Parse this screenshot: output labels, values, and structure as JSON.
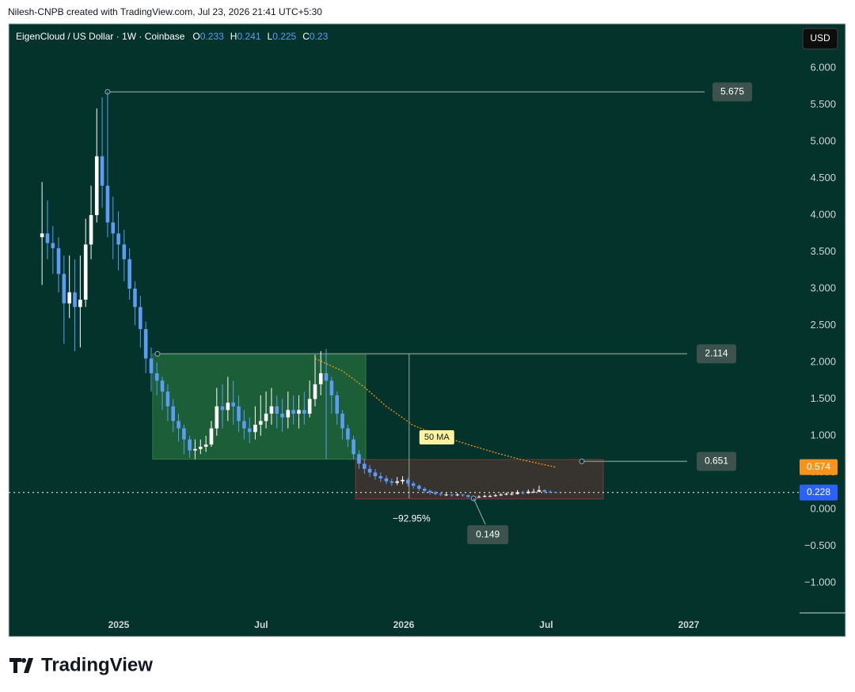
{
  "header": {
    "attribution": "Nilesh-CNPB created with TradingView.com, Jul 23, 2026 21:41 UTC+5:30"
  },
  "footer": {
    "brand": "TradingView"
  },
  "chart_data": {
    "type": "candlestick",
    "title": "EigenCloud / US Dollar · 1W · Coinbase",
    "ohlc_labels": [
      "O",
      "H",
      "L",
      "C"
    ],
    "currency": "USD",
    "x": [
      2024.731,
      2024.75,
      2024.769,
      2024.789,
      2024.808,
      2024.827,
      2024.846,
      2024.865,
      2024.884,
      2024.903,
      2024.923,
      2024.942,
      2024.961,
      2024.98,
      2024.999,
      2025.019,
      2025.038,
      2025.057,
      2025.076,
      2025.095,
      2025.114,
      2025.134,
      2025.153,
      2025.172,
      2025.191,
      2025.21,
      2025.229,
      2025.249,
      2025.268,
      2025.287,
      2025.306,
      2025.325,
      2025.344,
      2025.364,
      2025.383,
      2025.402,
      2025.421,
      2025.44,
      2025.459,
      2025.479,
      2025.498,
      2025.517,
      2025.536,
      2025.555,
      2025.574,
      2025.594,
      2025.613,
      2025.632,
      2025.651,
      2025.67,
      2025.689,
      2025.709,
      2025.728,
      2025.747,
      2025.766,
      2025.785,
      2025.804,
      2025.824,
      2025.843,
      2025.862,
      2025.881,
      2025.9,
      2025.919,
      2025.939,
      2025.958,
      2025.977,
      2025.996,
      2026.015,
      2026.034,
      2026.054,
      2026.073,
      2026.092,
      2026.111,
      2026.13,
      2026.149,
      2026.169,
      2026.188,
      2026.207,
      2026.226,
      2026.245,
      2026.264,
      2026.284,
      2026.303,
      2026.322,
      2026.341,
      2026.36,
      2026.379,
      2026.399,
      2026.418,
      2026.437,
      2026.456,
      2026.475,
      2026.494,
      2026.514,
      2026.533
    ],
    "open": [
      3.7,
      3.75,
      3.62,
      3.55,
      3.2,
      2.8,
      2.95,
      2.75,
      2.85,
      3.6,
      4.0,
      4.8,
      4.4,
      3.9,
      3.75,
      3.6,
      3.4,
      3.0,
      2.75,
      2.45,
      2.05,
      1.85,
      1.75,
      1.6,
      1.4,
      1.2,
      1.1,
      0.95,
      0.8,
      0.82,
      0.85,
      0.88,
      1.1,
      1.4,
      1.35,
      1.45,
      1.4,
      1.2,
      1.1,
      1.05,
      1.15,
      1.2,
      1.3,
      1.4,
      1.3,
      1.25,
      1.35,
      1.3,
      1.35,
      1.3,
      1.5,
      1.7,
      1.85,
      1.75,
      1.55,
      1.3,
      1.1,
      0.95,
      0.75,
      0.62,
      0.55,
      0.5,
      0.45,
      0.42,
      0.38,
      0.36,
      0.38,
      0.4,
      0.35,
      0.32,
      0.28,
      0.25,
      0.23,
      0.21,
      0.2,
      0.2,
      0.19,
      0.2,
      0.19,
      0.17,
      0.16,
      0.17,
      0.18,
      0.18,
      0.19,
      0.2,
      0.21,
      0.21,
      0.23,
      0.22,
      0.24,
      0.24,
      0.26,
      0.24,
      0.233
    ],
    "high": [
      4.45,
      4.2,
      3.85,
      3.7,
      3.45,
      3.45,
      3.4,
      3.45,
      3.95,
      4.4,
      5.45,
      5.6,
      5.675,
      4.25,
      4.05,
      3.8,
      3.55,
      3.1,
      2.9,
      2.55,
      2.2,
      2.0,
      1.8,
      1.7,
      1.5,
      1.3,
      1.15,
      1.0,
      0.95,
      0.95,
      1.0,
      1.2,
      1.65,
      1.7,
      1.8,
      1.75,
      1.55,
      1.35,
      1.25,
      1.4,
      1.55,
      1.6,
      1.65,
      1.55,
      1.5,
      1.6,
      1.55,
      1.55,
      1.6,
      1.75,
      2.1,
      2.15,
      2.18,
      1.8,
      1.6,
      1.35,
      1.15,
      1.0,
      0.8,
      0.68,
      0.6,
      0.55,
      0.5,
      0.46,
      0.42,
      0.44,
      0.45,
      0.43,
      0.38,
      0.34,
      0.3,
      0.27,
      0.25,
      0.23,
      0.22,
      0.21,
      0.22,
      0.21,
      0.2,
      0.18,
      0.19,
      0.2,
      0.2,
      0.21,
      0.22,
      0.23,
      0.24,
      0.26,
      0.25,
      0.27,
      0.28,
      0.32,
      0.27,
      0.26,
      0.241
    ],
    "low": [
      3.05,
      3.4,
      3.2,
      2.95,
      2.25,
      2.6,
      2.15,
      2.2,
      2.75,
      3.4,
      3.9,
      4.1,
      3.7,
      3.4,
      3.25,
      3.1,
      2.85,
      2.5,
      2.2,
      1.85,
      1.6,
      1.55,
      1.35,
      1.2,
      1.05,
      0.92,
      0.75,
      0.7,
      0.68,
      0.75,
      0.78,
      0.85,
      1.0,
      1.1,
      1.2,
      1.15,
      1.05,
      0.95,
      0.9,
      0.95,
      1.0,
      1.1,
      1.15,
      1.1,
      1.05,
      1.1,
      1.15,
      1.1,
      1.15,
      1.25,
      1.4,
      1.55,
      0.68,
      1.3,
      1.15,
      0.95,
      0.85,
      0.68,
      0.55,
      0.48,
      0.44,
      0.4,
      0.37,
      0.34,
      0.32,
      0.33,
      0.34,
      0.31,
      0.28,
      0.25,
      0.22,
      0.2,
      0.19,
      0.18,
      0.18,
      0.17,
      0.18,
      0.17,
      0.155,
      0.149,
      0.155,
      0.16,
      0.165,
      0.17,
      0.18,
      0.19,
      0.19,
      0.2,
      0.2,
      0.21,
      0.22,
      0.23,
      0.22,
      0.22,
      0.225
    ],
    "close": [
      3.75,
      3.62,
      3.55,
      3.2,
      2.8,
      2.95,
      2.75,
      2.85,
      3.6,
      4.0,
      4.8,
      4.4,
      3.9,
      3.75,
      3.6,
      3.4,
      3.0,
      2.75,
      2.45,
      2.05,
      1.85,
      1.75,
      1.6,
      1.4,
      1.2,
      1.1,
      0.95,
      0.8,
      0.82,
      0.85,
      0.88,
      1.1,
      1.4,
      1.35,
      1.45,
      1.4,
      1.2,
      1.1,
      1.05,
      1.15,
      1.2,
      1.3,
      1.4,
      1.3,
      1.25,
      1.35,
      1.3,
      1.35,
      1.3,
      1.5,
      1.7,
      1.85,
      1.75,
      1.55,
      1.3,
      1.1,
      0.95,
      0.75,
      0.62,
      0.55,
      0.5,
      0.45,
      0.42,
      0.38,
      0.36,
      0.38,
      0.4,
      0.35,
      0.32,
      0.28,
      0.25,
      0.23,
      0.21,
      0.2,
      0.2,
      0.19,
      0.2,
      0.19,
      0.17,
      0.16,
      0.17,
      0.18,
      0.18,
      0.19,
      0.2,
      0.21,
      0.21,
      0.23,
      0.22,
      0.24,
      0.24,
      0.26,
      0.24,
      0.233,
      0.23
    ],
    "up_color": "#ffffff",
    "down_color": "#5b9cf6",
    "xlim": [
      2024.614,
      2027.389
    ],
    "xticks": [
      2025,
      {
        "value": 2025.5,
        "label": "Jul"
      },
      2026,
      {
        "value": 2026.5,
        "label": "Jul"
      },
      2027
    ],
    "ylim": [
      -1.409,
      6.602
    ],
    "yticks": [
      {
        "value": 6,
        "label": "6.000"
      },
      {
        "value": 5.5,
        "label": "5.500"
      },
      {
        "value": 5,
        "label": "5.000"
      },
      {
        "value": 4.5,
        "label": "4.500"
      },
      {
        "value": 4,
        "label": "4.000"
      },
      {
        "value": 3.5,
        "label": "3.500"
      },
      {
        "value": 3,
        "label": "3.000"
      },
      {
        "value": 2.5,
        "label": "2.500"
      },
      {
        "value": 2,
        "label": "2.000"
      },
      {
        "value": 1.5,
        "label": "1.500"
      },
      {
        "value": 1,
        "label": "1.000"
      },
      {
        "value": 0.5,
        "label": "0.500"
      },
      {
        "value": 0,
        "label": "0.000"
      },
      {
        "value": -0.5,
        "label": "−0.500"
      },
      {
        "value": -1,
        "label": "−1.000"
      }
    ],
    "grid": false,
    "moving_average": {
      "name": "50 MA",
      "color": "#f7931a",
      "x": [
        2025.689,
        2025.785,
        2025.862,
        2025.939,
        2026.034,
        2026.13,
        2026.226,
        2026.322,
        2026.418,
        2026.533
      ],
      "values": [
        2.05,
        1.88,
        1.66,
        1.4,
        1.14,
        1.0,
        0.88,
        0.77,
        0.67,
        0.574
      ]
    },
    "last_price": {
      "value": 0.228,
      "color": "#2962ff"
    },
    "hlines": [
      {
        "value": 5.675,
        "x": 2024.961
      },
      {
        "value": 2.114,
        "x": 2025.136
      },
      {
        "value": 0.651,
        "x": 2026.625
      }
    ],
    "zones": [
      {
        "x": [
          2025.119,
          2025.867
        ],
        "y": [
          0.68,
          2.114
        ],
        "color": "#4caf50"
      },
      {
        "x": [
          2025.831,
          2026.7
        ],
        "y": [
          0.14,
          0.677
        ],
        "color": "#f23645"
      }
    ],
    "measure": {
      "x": 2026.019,
      "from": 2.114,
      "to": 0.149,
      "label": "−92.95%"
    },
    "low_marker": {
      "x": 2026.245,
      "value": 0.149
    }
  }
}
